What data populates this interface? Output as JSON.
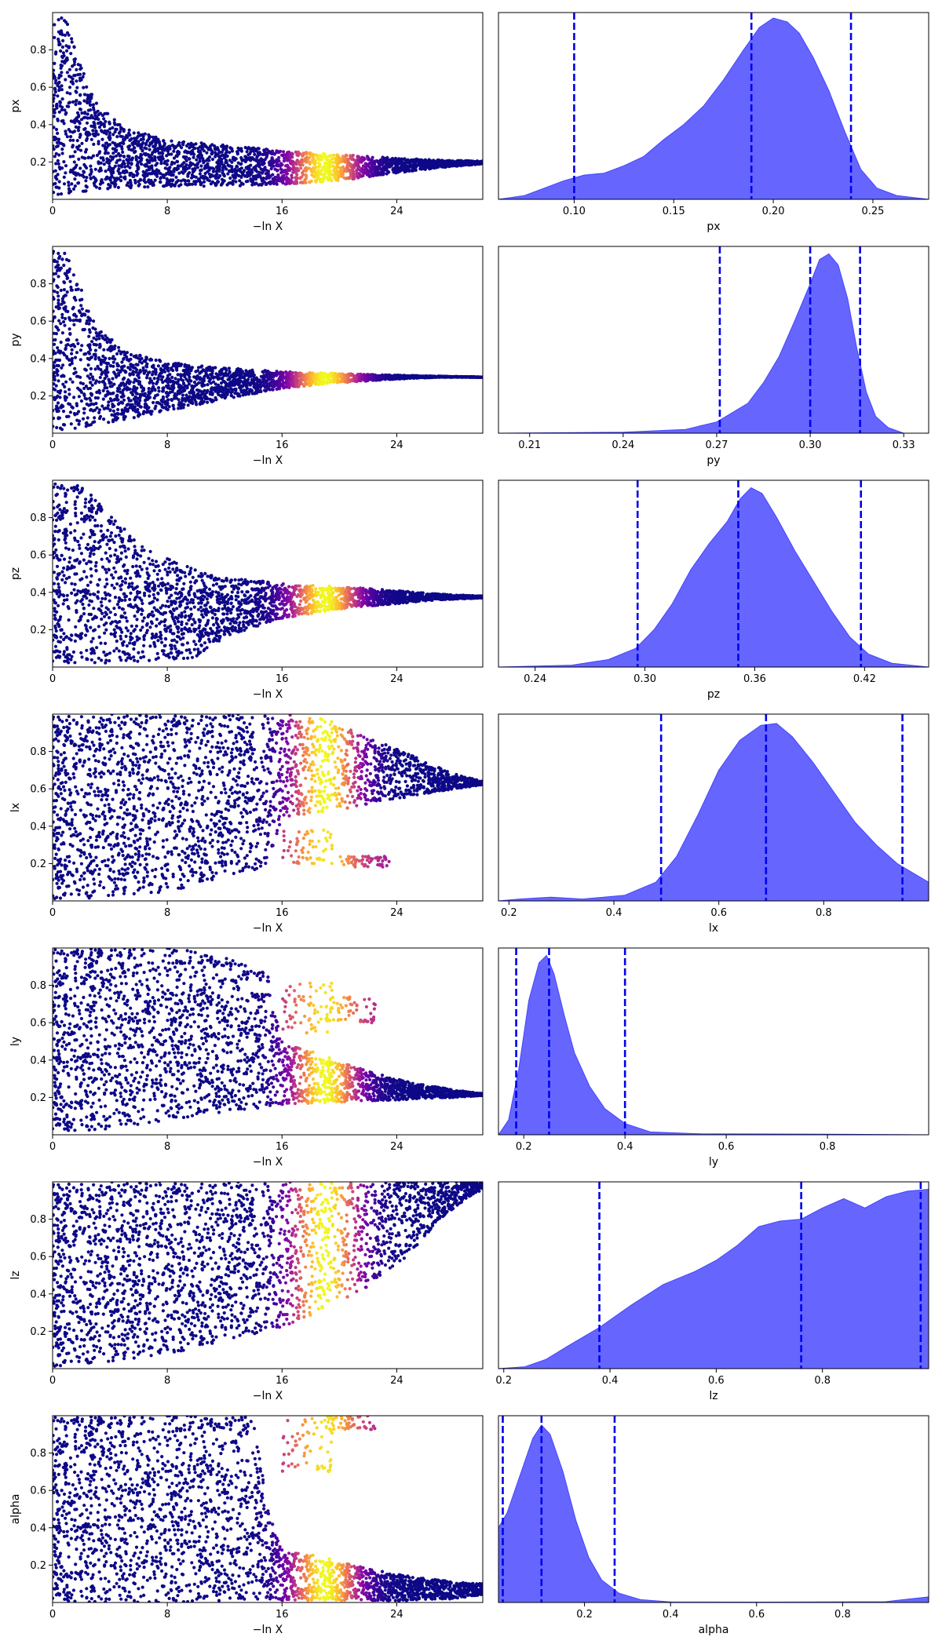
{
  "chart_data": [
    {
      "type": "scatter",
      "panel": "run",
      "param": "px",
      "xlabel": "−ln X",
      "ylabel": "px",
      "xlim": [
        0,
        30
      ],
      "xticks": [
        "0",
        "8",
        "16",
        "24"
      ],
      "ylim": [
        0,
        1
      ],
      "yticks": [
        "0.2",
        "0.4",
        "0.6",
        "0.8"
      ],
      "colormap": "plasma",
      "peak_x": 19,
      "envelope": [
        [
          0,
          0.02,
          0.99
        ],
        [
          1,
          0.03,
          0.96
        ],
        [
          2,
          0.04,
          0.72
        ],
        [
          3,
          0.05,
          0.52
        ],
        [
          5,
          0.06,
          0.38
        ],
        [
          8,
          0.07,
          0.32
        ],
        [
          12,
          0.07,
          0.29
        ],
        [
          16,
          0.08,
          0.26
        ],
        [
          20,
          0.1,
          0.24
        ],
        [
          24,
          0.14,
          0.22
        ],
        [
          27,
          0.17,
          0.21
        ],
        [
          30,
          0.19,
          0.205
        ]
      ],
      "overlay": []
    },
    {
      "type": "area",
      "panel": "kde",
      "param": "px",
      "xlabel": "px",
      "xlim": [
        0.062,
        0.278
      ],
      "xticks": [
        "0.10",
        "0.15",
        "0.20",
        "0.25"
      ],
      "fill_color": "#6666ff",
      "edge_color": "#4444ff",
      "line_color": "#0000ee",
      "density": [
        [
          0.062,
          0
        ],
        [
          0.075,
          0.02
        ],
        [
          0.085,
          0.06
        ],
        [
          0.095,
          0.1
        ],
        [
          0.105,
          0.13
        ],
        [
          0.115,
          0.14
        ],
        [
          0.125,
          0.18
        ],
        [
          0.135,
          0.23
        ],
        [
          0.145,
          0.32
        ],
        [
          0.155,
          0.4
        ],
        [
          0.165,
          0.5
        ],
        [
          0.175,
          0.64
        ],
        [
          0.185,
          0.8
        ],
        [
          0.193,
          0.92
        ],
        [
          0.2,
          0.97
        ],
        [
          0.207,
          0.95
        ],
        [
          0.213,
          0.89
        ],
        [
          0.22,
          0.76
        ],
        [
          0.228,
          0.58
        ],
        [
          0.236,
          0.36
        ],
        [
          0.244,
          0.16
        ],
        [
          0.252,
          0.06
        ],
        [
          0.262,
          0.02
        ],
        [
          0.278,
          0
        ]
      ],
      "quantiles": [
        0.1,
        0.189,
        0.239
      ]
    },
    {
      "type": "scatter",
      "panel": "run",
      "param": "py",
      "xlabel": "−ln X",
      "ylabel": "py",
      "xlim": [
        0,
        30
      ],
      "xticks": [
        "0",
        "8",
        "16",
        "24"
      ],
      "ylim": [
        0,
        1
      ],
      "yticks": [
        "0.2",
        "0.4",
        "0.6",
        "0.8"
      ],
      "colormap": "plasma",
      "peak_x": 19,
      "envelope": [
        [
          0,
          0.01,
          0.99
        ],
        [
          1,
          0.02,
          0.96
        ],
        [
          2,
          0.03,
          0.78
        ],
        [
          3,
          0.04,
          0.58
        ],
        [
          5,
          0.07,
          0.44
        ],
        [
          8,
          0.12,
          0.38
        ],
        [
          12,
          0.18,
          0.35
        ],
        [
          16,
          0.24,
          0.33
        ],
        [
          20,
          0.27,
          0.32
        ],
        [
          24,
          0.29,
          0.31
        ],
        [
          27,
          0.3,
          0.305
        ],
        [
          30,
          0.3,
          0.3
        ]
      ],
      "overlay": []
    },
    {
      "type": "area",
      "panel": "kde",
      "param": "py",
      "xlabel": "py",
      "xlim": [
        0.2,
        0.338
      ],
      "xticks": [
        "0.21",
        "0.24",
        "0.27",
        "0.30",
        "0.33"
      ],
      "fill_color": "#6666ff",
      "edge_color": "#4444ff",
      "line_color": "#0000ee",
      "density": [
        [
          0.2,
          0
        ],
        [
          0.24,
          0.005
        ],
        [
          0.26,
          0.02
        ],
        [
          0.27,
          0.06
        ],
        [
          0.28,
          0.16
        ],
        [
          0.285,
          0.27
        ],
        [
          0.29,
          0.41
        ],
        [
          0.295,
          0.6
        ],
        [
          0.3,
          0.8
        ],
        [
          0.303,
          0.93
        ],
        [
          0.306,
          0.96
        ],
        [
          0.309,
          0.9
        ],
        [
          0.312,
          0.72
        ],
        [
          0.315,
          0.45
        ],
        [
          0.318,
          0.22
        ],
        [
          0.321,
          0.09
        ],
        [
          0.325,
          0.03
        ],
        [
          0.33,
          0
        ],
        [
          0.338,
          0
        ]
      ],
      "quantiles": [
        0.271,
        0.3,
        0.316
      ]
    },
    {
      "type": "scatter",
      "panel": "run",
      "param": "pz",
      "xlabel": "−ln X",
      "ylabel": "pz",
      "xlim": [
        0,
        30
      ],
      "xticks": [
        "0",
        "8",
        "16",
        "24"
      ],
      "ylim": [
        0,
        1
      ],
      "yticks": [
        "0.2",
        "0.4",
        "0.6",
        "0.8"
      ],
      "colormap": "plasma",
      "peak_x": 19,
      "envelope": [
        [
          0,
          0.01,
          0.99
        ],
        [
          2,
          0.02,
          0.98
        ],
        [
          4,
          0.02,
          0.82
        ],
        [
          6,
          0.03,
          0.66
        ],
        [
          8,
          0.04,
          0.58
        ],
        [
          10,
          0.05,
          0.52
        ],
        [
          12,
          0.16,
          0.48
        ],
        [
          16,
          0.26,
          0.45
        ],
        [
          20,
          0.31,
          0.43
        ],
        [
          24,
          0.34,
          0.41
        ],
        [
          27,
          0.36,
          0.39
        ],
        [
          30,
          0.37,
          0.38
        ]
      ],
      "overlay": []
    },
    {
      "type": "area",
      "panel": "kde",
      "param": "pz",
      "xlabel": "pz",
      "xlim": [
        0.22,
        0.455
      ],
      "xticks": [
        "0.24",
        "0.30",
        "0.36",
        "0.42"
      ],
      "fill_color": "#6666ff",
      "edge_color": "#4444ff",
      "line_color": "#0000ee",
      "density": [
        [
          0.22,
          0
        ],
        [
          0.26,
          0.01
        ],
        [
          0.28,
          0.04
        ],
        [
          0.295,
          0.1
        ],
        [
          0.305,
          0.2
        ],
        [
          0.315,
          0.34
        ],
        [
          0.325,
          0.52
        ],
        [
          0.335,
          0.66
        ],
        [
          0.345,
          0.78
        ],
        [
          0.352,
          0.9
        ],
        [
          0.358,
          0.96
        ],
        [
          0.364,
          0.93
        ],
        [
          0.372,
          0.8
        ],
        [
          0.382,
          0.62
        ],
        [
          0.392,
          0.46
        ],
        [
          0.402,
          0.3
        ],
        [
          0.412,
          0.16
        ],
        [
          0.422,
          0.07
        ],
        [
          0.435,
          0.02
        ],
        [
          0.455,
          0
        ]
      ],
      "quantiles": [
        0.296,
        0.351,
        0.418
      ]
    },
    {
      "type": "scatter",
      "panel": "run",
      "param": "lx",
      "xlabel": "−ln X",
      "ylabel": "lx",
      "xlim": [
        0,
        30
      ],
      "xticks": [
        "0",
        "8",
        "16",
        "24"
      ],
      "ylim": [
        0,
        1
      ],
      "yticks": [
        "0.2",
        "0.4",
        "0.6",
        "0.8"
      ],
      "colormap": "plasma",
      "peak_x": 19,
      "envelope": [
        [
          0,
          0.0,
          1.0
        ],
        [
          4,
          0.02,
          1.0
        ],
        [
          8,
          0.05,
          1.0
        ],
        [
          12,
          0.12,
          1.0
        ],
        [
          15,
          0.18,
          1.0
        ],
        [
          16,
          0.45,
          1.0
        ],
        [
          19,
          0.47,
          0.98
        ],
        [
          22,
          0.52,
          0.88
        ],
        [
          25,
          0.56,
          0.78
        ],
        [
          28,
          0.6,
          0.68
        ],
        [
          30,
          0.62,
          0.64
        ]
      ],
      "overlay": [
        [
          16,
          0.2,
          0.38
        ],
        [
          20,
          0.18,
          0.24
        ]
      ]
    },
    {
      "type": "area",
      "panel": "kde",
      "param": "lx",
      "xlabel": "lx",
      "xlim": [
        0.18,
        1.0
      ],
      "xticks": [
        "0.2",
        "0.4",
        "0.6",
        "0.8"
      ],
      "fill_color": "#6666ff",
      "edge_color": "#4444ff",
      "line_color": "#0000ee",
      "density": [
        [
          0.18,
          0
        ],
        [
          0.22,
          0.01
        ],
        [
          0.28,
          0.02
        ],
        [
          0.34,
          0.01
        ],
        [
          0.42,
          0.03
        ],
        [
          0.48,
          0.1
        ],
        [
          0.52,
          0.24
        ],
        [
          0.56,
          0.46
        ],
        [
          0.6,
          0.7
        ],
        [
          0.64,
          0.86
        ],
        [
          0.68,
          0.94
        ],
        [
          0.71,
          0.95
        ],
        [
          0.74,
          0.88
        ],
        [
          0.78,
          0.74
        ],
        [
          0.82,
          0.58
        ],
        [
          0.86,
          0.42
        ],
        [
          0.9,
          0.3
        ],
        [
          0.94,
          0.2
        ],
        [
          1.0,
          0.1
        ]
      ],
      "quantiles": [
        0.49,
        0.69,
        0.95
      ]
    },
    {
      "type": "scatter",
      "panel": "run",
      "param": "ly",
      "xlabel": "−ln X",
      "ylabel": "ly",
      "xlim": [
        0,
        30
      ],
      "xticks": [
        "0",
        "8",
        "16",
        "24"
      ],
      "ylim": [
        0,
        1
      ],
      "yticks": [
        "0.2",
        "0.4",
        "0.6",
        "0.8"
      ],
      "colormap": "plasma",
      "peak_x": 19,
      "envelope": [
        [
          0,
          0.01,
          1.0
        ],
        [
          4,
          0.03,
          1.0
        ],
        [
          8,
          0.08,
          1.0
        ],
        [
          12,
          0.12,
          0.96
        ],
        [
          15,
          0.14,
          0.86
        ],
        [
          16,
          0.16,
          0.52
        ],
        [
          19,
          0.17,
          0.42
        ],
        [
          22,
          0.18,
          0.34
        ],
        [
          25,
          0.19,
          0.28
        ],
        [
          28,
          0.2,
          0.24
        ],
        [
          30,
          0.21,
          0.22
        ]
      ],
      "overlay": [
        [
          16,
          0.54,
          0.82
        ],
        [
          19,
          0.6,
          0.74
        ]
      ]
    },
    {
      "type": "area",
      "panel": "kde",
      "param": "ly",
      "xlabel": "ly",
      "xlim": [
        0.15,
        1.0
      ],
      "xticks": [
        "0.2",
        "0.4",
        "0.6",
        "0.8"
      ],
      "fill_color": "#6666ff",
      "edge_color": "#4444ff",
      "line_color": "#0000ee",
      "density": [
        [
          0.15,
          0
        ],
        [
          0.17,
          0.08
        ],
        [
          0.19,
          0.35
        ],
        [
          0.21,
          0.72
        ],
        [
          0.23,
          0.92
        ],
        [
          0.245,
          0.96
        ],
        [
          0.26,
          0.86
        ],
        [
          0.28,
          0.64
        ],
        [
          0.3,
          0.44
        ],
        [
          0.33,
          0.26
        ],
        [
          0.36,
          0.14
        ],
        [
          0.4,
          0.06
        ],
        [
          0.45,
          0.015
        ],
        [
          0.55,
          0.005
        ],
        [
          0.8,
          0.003
        ],
        [
          1.0,
          0
        ]
      ],
      "quantiles": [
        0.185,
        0.25,
        0.4
      ]
    },
    {
      "type": "scatter",
      "panel": "run",
      "param": "lz",
      "xlabel": "−ln X",
      "ylabel": "lz",
      "xlim": [
        0,
        30
      ],
      "xticks": [
        "0",
        "8",
        "16",
        "24"
      ],
      "ylim": [
        0,
        1
      ],
      "yticks": [
        "0.2",
        "0.4",
        "0.6",
        "0.8"
      ],
      "colormap": "plasma",
      "peak_x": 19,
      "envelope": [
        [
          0,
          0.0,
          1.0
        ],
        [
          4,
          0.03,
          1.0
        ],
        [
          8,
          0.08,
          1.0
        ],
        [
          12,
          0.14,
          1.0
        ],
        [
          16,
          0.22,
          1.0
        ],
        [
          19,
          0.32,
          1.0
        ],
        [
          22,
          0.44,
          1.0
        ],
        [
          25,
          0.62,
          1.0
        ],
        [
          27,
          0.8,
          1.0
        ],
        [
          29,
          0.92,
          1.0
        ],
        [
          30,
          0.96,
          1.0
        ]
      ],
      "overlay": []
    },
    {
      "type": "area",
      "panel": "kde",
      "param": "lz",
      "xlabel": "lz",
      "xlim": [
        0.19,
        1.0
      ],
      "xticks": [
        "0.2",
        "0.4",
        "0.6",
        "0.8"
      ],
      "fill_color": "#6666ff",
      "edge_color": "#4444ff",
      "line_color": "#0000ee",
      "density": [
        [
          0.19,
          0
        ],
        [
          0.24,
          0.01
        ],
        [
          0.28,
          0.05
        ],
        [
          0.32,
          0.12
        ],
        [
          0.38,
          0.22
        ],
        [
          0.44,
          0.34
        ],
        [
          0.5,
          0.45
        ],
        [
          0.56,
          0.52
        ],
        [
          0.6,
          0.58
        ],
        [
          0.64,
          0.66
        ],
        [
          0.68,
          0.76
        ],
        [
          0.72,
          0.79
        ],
        [
          0.76,
          0.8
        ],
        [
          0.8,
          0.86
        ],
        [
          0.84,
          0.91
        ],
        [
          0.88,
          0.86
        ],
        [
          0.92,
          0.92
        ],
        [
          0.96,
          0.95
        ],
        [
          1.0,
          0.96
        ]
      ],
      "quantiles": [
        0.38,
        0.76,
        0.985
      ]
    },
    {
      "type": "scatter",
      "panel": "run",
      "param": "alpha",
      "xlabel": "−ln X",
      "ylabel": "alpha",
      "xlim": [
        0,
        30
      ],
      "xticks": [
        "0",
        "8",
        "16",
        "24"
      ],
      "ylim": [
        0,
        1
      ],
      "yticks": [
        "0.2",
        "0.4",
        "0.6",
        "0.8"
      ],
      "colormap": "plasma",
      "peak_x": 19,
      "envelope": [
        [
          0,
          0.0,
          1.0
        ],
        [
          8,
          0.0,
          1.0
        ],
        [
          14,
          0.01,
          1.0
        ],
        [
          15,
          0.01,
          0.5
        ],
        [
          16,
          0.01,
          0.3
        ],
        [
          19,
          0.01,
          0.24
        ],
        [
          22,
          0.01,
          0.18
        ],
        [
          25,
          0.01,
          0.14
        ],
        [
          28,
          0.02,
          0.11
        ],
        [
          30,
          0.04,
          0.1
        ]
      ],
      "overlay": [
        [
          16,
          0.7,
          1.0
        ],
        [
          19,
          0.92,
          1.0
        ]
      ]
    },
    {
      "type": "area",
      "panel": "kde",
      "param": "alpha",
      "xlabel": "alpha",
      "xlim": [
        0.0,
        1.0
      ],
      "xticks": [
        "0.2",
        "0.4",
        "0.6",
        "0.8"
      ],
      "fill_color": "#6666ff",
      "edge_color": "#4444ff",
      "line_color": "#0000ee",
      "density": [
        [
          0.0,
          0.4
        ],
        [
          0.02,
          0.48
        ],
        [
          0.05,
          0.68
        ],
        [
          0.08,
          0.88
        ],
        [
          0.1,
          0.95
        ],
        [
          0.12,
          0.9
        ],
        [
          0.15,
          0.7
        ],
        [
          0.18,
          0.44
        ],
        [
          0.21,
          0.24
        ],
        [
          0.24,
          0.12
        ],
        [
          0.28,
          0.05
        ],
        [
          0.33,
          0.015
        ],
        [
          0.4,
          0.003
        ],
        [
          0.6,
          0.002
        ],
        [
          0.9,
          0.004
        ],
        [
          0.96,
          0.02
        ],
        [
          1.0,
          0.03
        ]
      ],
      "quantiles": [
        0.01,
        0.1,
        0.27
      ]
    }
  ]
}
